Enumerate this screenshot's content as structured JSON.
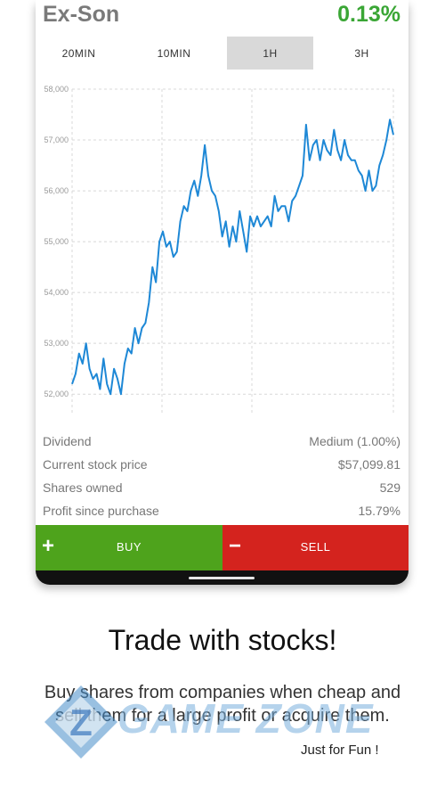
{
  "stock": {
    "name": "Ex-Son",
    "change": "0.13%"
  },
  "tabs": [
    {
      "label": "20MIN",
      "active": false
    },
    {
      "label": "10MIN",
      "active": false
    },
    {
      "label": "1H",
      "active": true
    },
    {
      "label": "3H",
      "active": false
    }
  ],
  "chart_data": {
    "type": "line",
    "ylim": [
      51600,
      58000
    ],
    "y_ticks": [
      "58,000",
      "57,000",
      "56,000",
      "55,000",
      "54,000",
      "53,000",
      "52,000"
    ],
    "y_tick_values": [
      58000,
      57000,
      56000,
      55000,
      54000,
      53000,
      52000
    ],
    "series": [
      {
        "color": "#1e88d6",
        "y": [
          52200,
          52400,
          52800,
          52600,
          53000,
          52500,
          52300,
          52400,
          52100,
          52700,
          52200,
          52000,
          52500,
          52300,
          52000,
          52600,
          52900,
          52800,
          53300,
          53000,
          53300,
          53400,
          53800,
          54500,
          54200,
          55000,
          55200,
          54900,
          55000,
          54700,
          54800,
          55400,
          55700,
          55600,
          56000,
          56200,
          55900,
          56300,
          56900,
          56300,
          56000,
          55900,
          55600,
          55100,
          55400,
          54900,
          55300,
          55000,
          55600,
          55200,
          54800,
          55500,
          55300,
          55500,
          55300,
          55400,
          55500,
          55300,
          55900,
          55600,
          55700,
          55700,
          55400,
          55800,
          55900,
          56100,
          56300,
          57300,
          56600,
          56900,
          57000,
          56600,
          57000,
          56800,
          56700,
          57200,
          56800,
          56600,
          57000,
          56700,
          56600,
          56600,
          56400,
          56300,
          56000,
          56400,
          56000,
          56100,
          56500,
          56700,
          57000,
          57400,
          57100
        ]
      }
    ]
  },
  "stats": [
    {
      "label": "Dividend",
      "value": "Medium (1.00%)"
    },
    {
      "label": "Current stock price",
      "value": "$57,099.81"
    },
    {
      "label": "Shares owned",
      "value": "529"
    },
    {
      "label": "Profit since purchase",
      "value": "15.79%"
    }
  ],
  "actions": {
    "buy_symbol": "+",
    "buy_label": "BUY",
    "sell_symbol": "−",
    "sell_label": "SELL"
  },
  "promo": {
    "headline": "Trade with stocks!",
    "subtext": "Buy shares from companies when cheap and sell them for a large profit or acquire them."
  },
  "watermark": {
    "brand": "GAME ZONE",
    "tagline": "Just for Fun !"
  },
  "colors": {
    "positive": "#3aa635",
    "buy": "#4ea31c",
    "sell": "#d4231e",
    "line": "#1e88d6"
  }
}
